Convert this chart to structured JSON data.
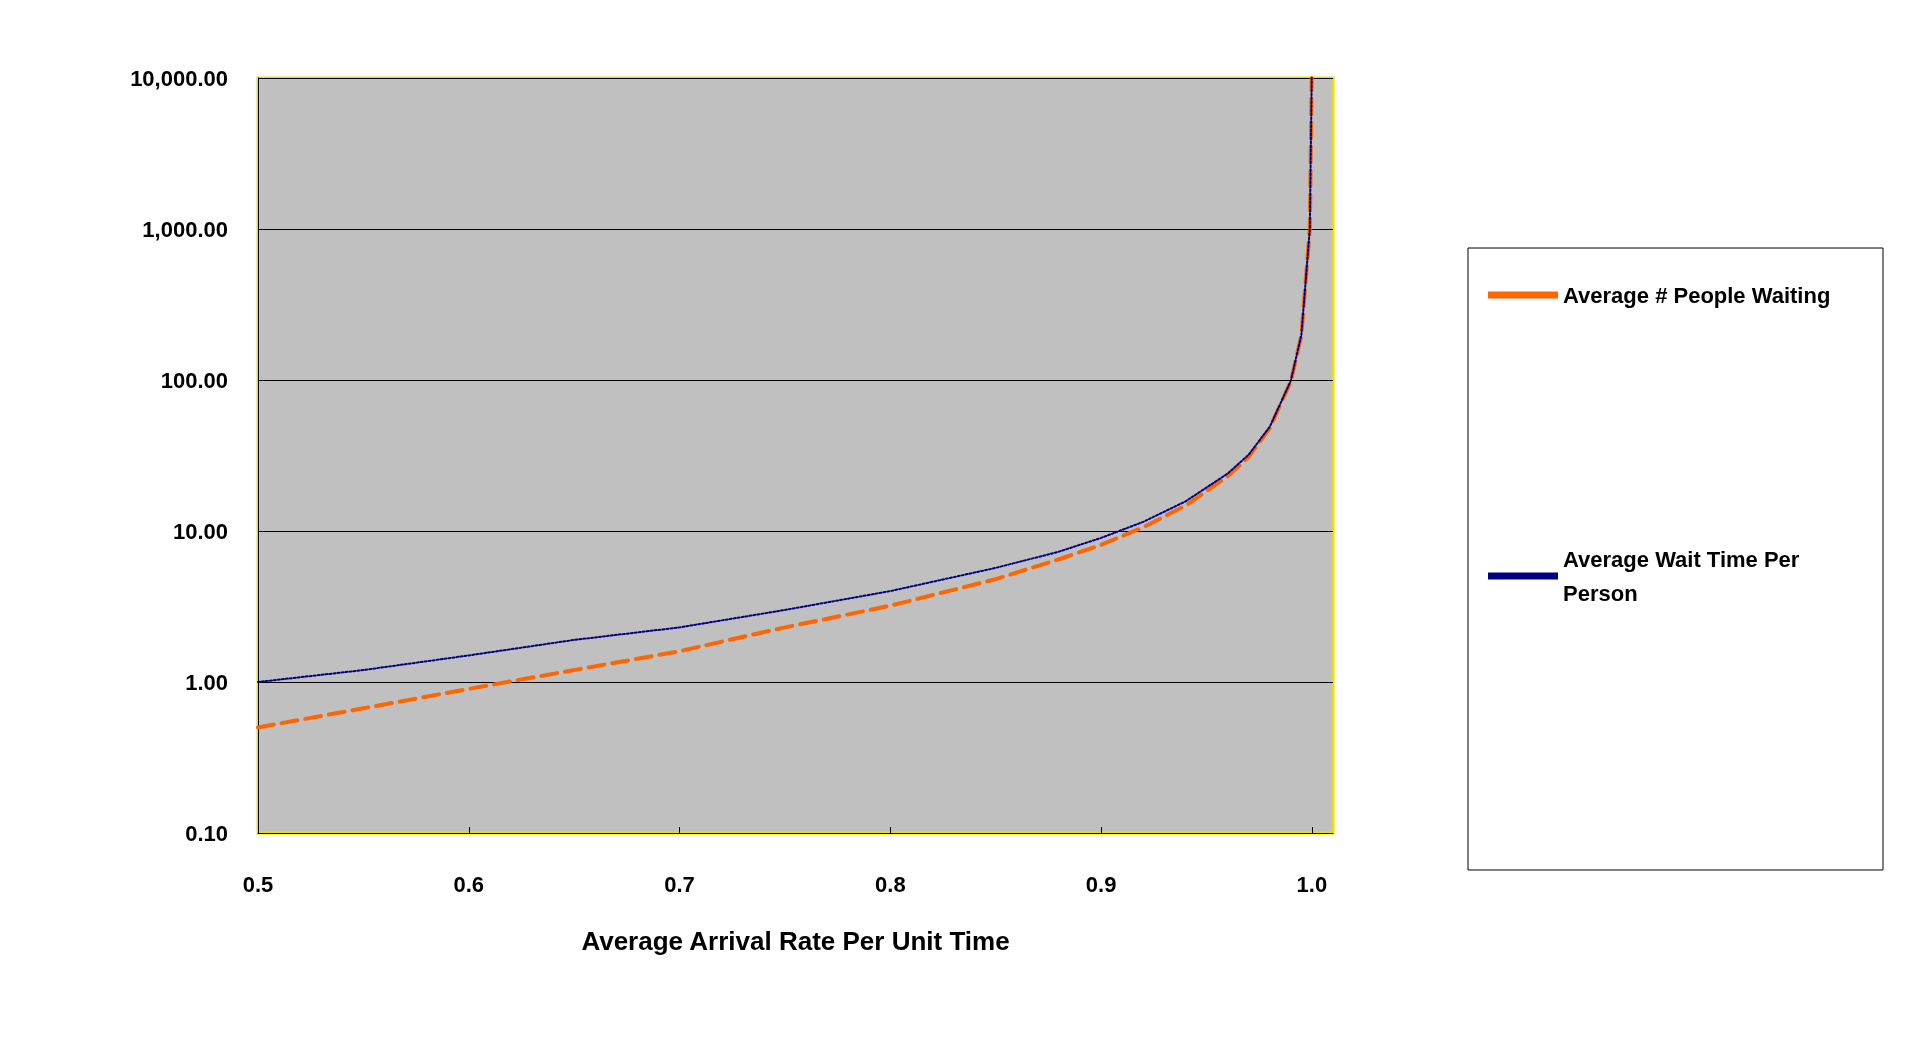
{
  "chart_data": {
    "type": "line",
    "xlabel": "Average Arrival Rate Per Unit Time",
    "log": "y",
    "grid": "y",
    "legend": "right",
    "marker": "none",
    "xlim": [
      0.5,
      1.01
    ],
    "xticks": [
      0.5,
      0.6,
      0.7,
      0.8,
      0.9,
      {
        "value": 1,
        "label": "1.0"
      }
    ],
    "ylim": [
      0.1,
      10000
    ],
    "yticks": [
      {
        "value": 0.1,
        "label": "0.10"
      },
      {
        "value": 1,
        "label": "1.00"
      },
      {
        "value": 10,
        "label": "10.00"
      },
      {
        "value": 100,
        "label": "100.00"
      },
      {
        "value": 1000,
        "label": "1,000.00"
      },
      {
        "value": 10000,
        "label": "10,000.00"
      }
    ],
    "x": [
      0.5,
      0.55,
      0.6,
      0.65,
      0.7,
      0.75,
      0.8,
      0.85,
      0.88,
      0.9,
      0.92,
      0.94,
      0.96,
      0.97,
      0.98,
      0.99,
      0.995,
      0.999,
      0.9999
    ],
    "series": [
      {
        "name": "Average # People Waiting",
        "color": "#ff6600",
        "line_style": "dashed",
        "values": [
          0.5,
          0.67,
          0.9,
          1.2,
          1.6,
          2.3,
          3.2,
          4.8,
          6.5,
          8.1,
          10.6,
          14.7,
          23,
          31,
          48,
          98,
          198,
          998,
          9998
        ]
      },
      {
        "name": "Average Wait Time Per Person",
        "color": "#000080",
        "line_style": "dotted",
        "values": [
          1,
          1.2,
          1.5,
          1.9,
          2.3,
          3,
          4,
          5.7,
          7.3,
          9,
          11.5,
          15.7,
          24,
          32,
          49,
          99,
          199,
          999,
          9999
        ]
      }
    ]
  }
}
